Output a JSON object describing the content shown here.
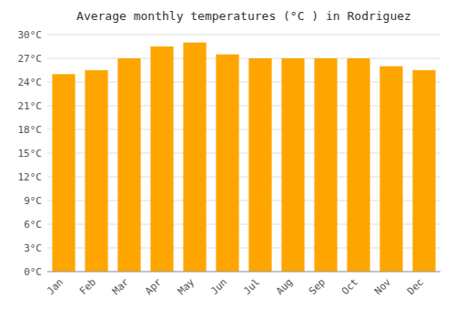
{
  "chart_data": {
    "type": "bar",
    "title": "Average monthly temperatures (°C ) in Rodriguez",
    "categories": [
      "Jan",
      "Feb",
      "Mar",
      "Apr",
      "May",
      "Jun",
      "Jul",
      "Aug",
      "Sep",
      "Oct",
      "Nov",
      "Dec"
    ],
    "values": [
      25.0,
      25.5,
      27.0,
      28.5,
      29.0,
      27.5,
      27.0,
      27.0,
      27.0,
      27.0,
      26.0,
      25.5
    ],
    "color": "#FFA500",
    "ylim": [
      0,
      30
    ],
    "yticks": [
      {
        "value": 0,
        "label": "0°C"
      },
      {
        "value": 3,
        "label": "3°C"
      },
      {
        "value": 6,
        "label": "6°C"
      },
      {
        "value": 9,
        "label": "9°C"
      },
      {
        "value": 12,
        "label": "12°C"
      },
      {
        "value": 15,
        "label": "15°C"
      },
      {
        "value": 18,
        "label": "18°C"
      },
      {
        "value": 21,
        "label": "21°C"
      },
      {
        "value": 24,
        "label": "24°C"
      },
      {
        "value": 27,
        "label": "27°C"
      },
      {
        "value": 30,
        "label": "30°C"
      }
    ],
    "grid": true
  }
}
